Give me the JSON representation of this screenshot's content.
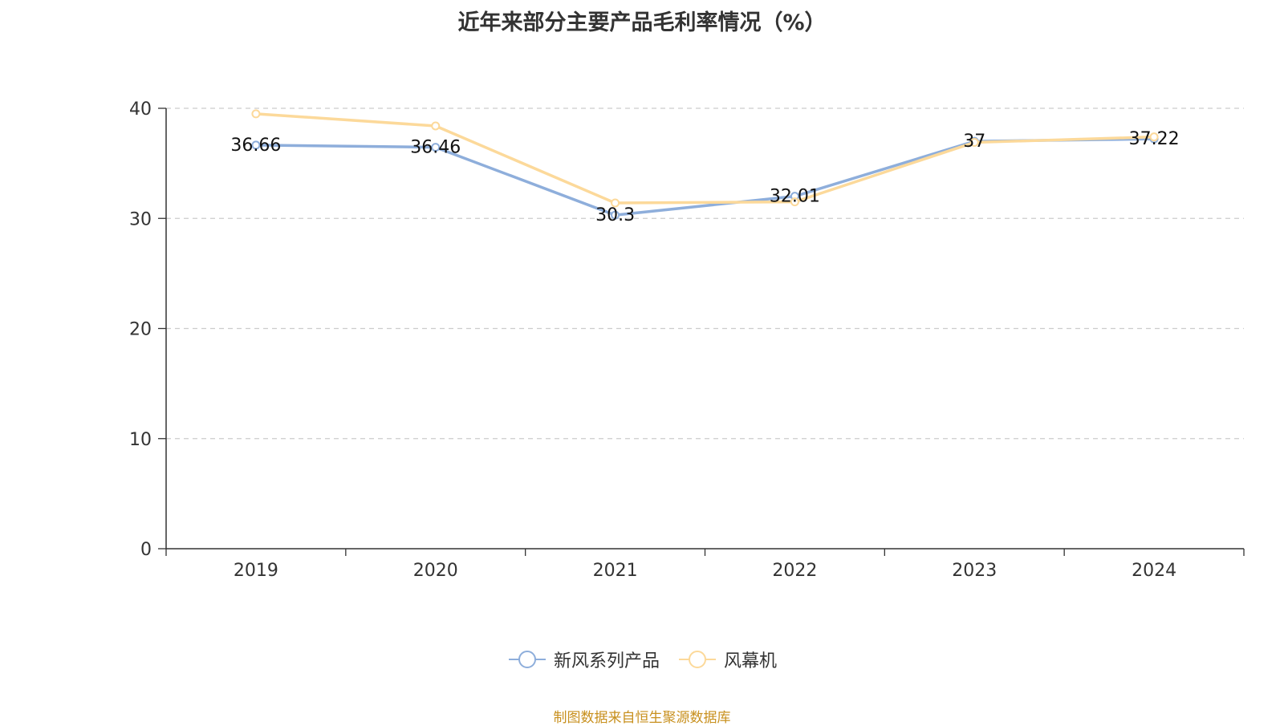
{
  "chart_data": {
    "type": "line",
    "title": "近年来部分主要产品毛利率情况（%）",
    "categories": [
      "2019",
      "2020",
      "2021",
      "2022",
      "2023",
      "2024"
    ],
    "ylim": [
      0,
      40
    ],
    "yticks": [
      0,
      10,
      20,
      30,
      40
    ],
    "grid": true,
    "legend_position": "bottom",
    "series": [
      {
        "name": "新风系列产品",
        "values": [
          36.66,
          36.46,
          30.3,
          32.01,
          37,
          37.22
        ],
        "color": "#8eaedb",
        "show_labels": true
      },
      {
        "name": "风幕机",
        "values": [
          39.5,
          38.4,
          31.4,
          31.5,
          36.9,
          37.4
        ],
        "color": "#fcd99a",
        "show_labels": false
      }
    ]
  },
  "source_note": "制图数据来自恒生聚源数据库"
}
